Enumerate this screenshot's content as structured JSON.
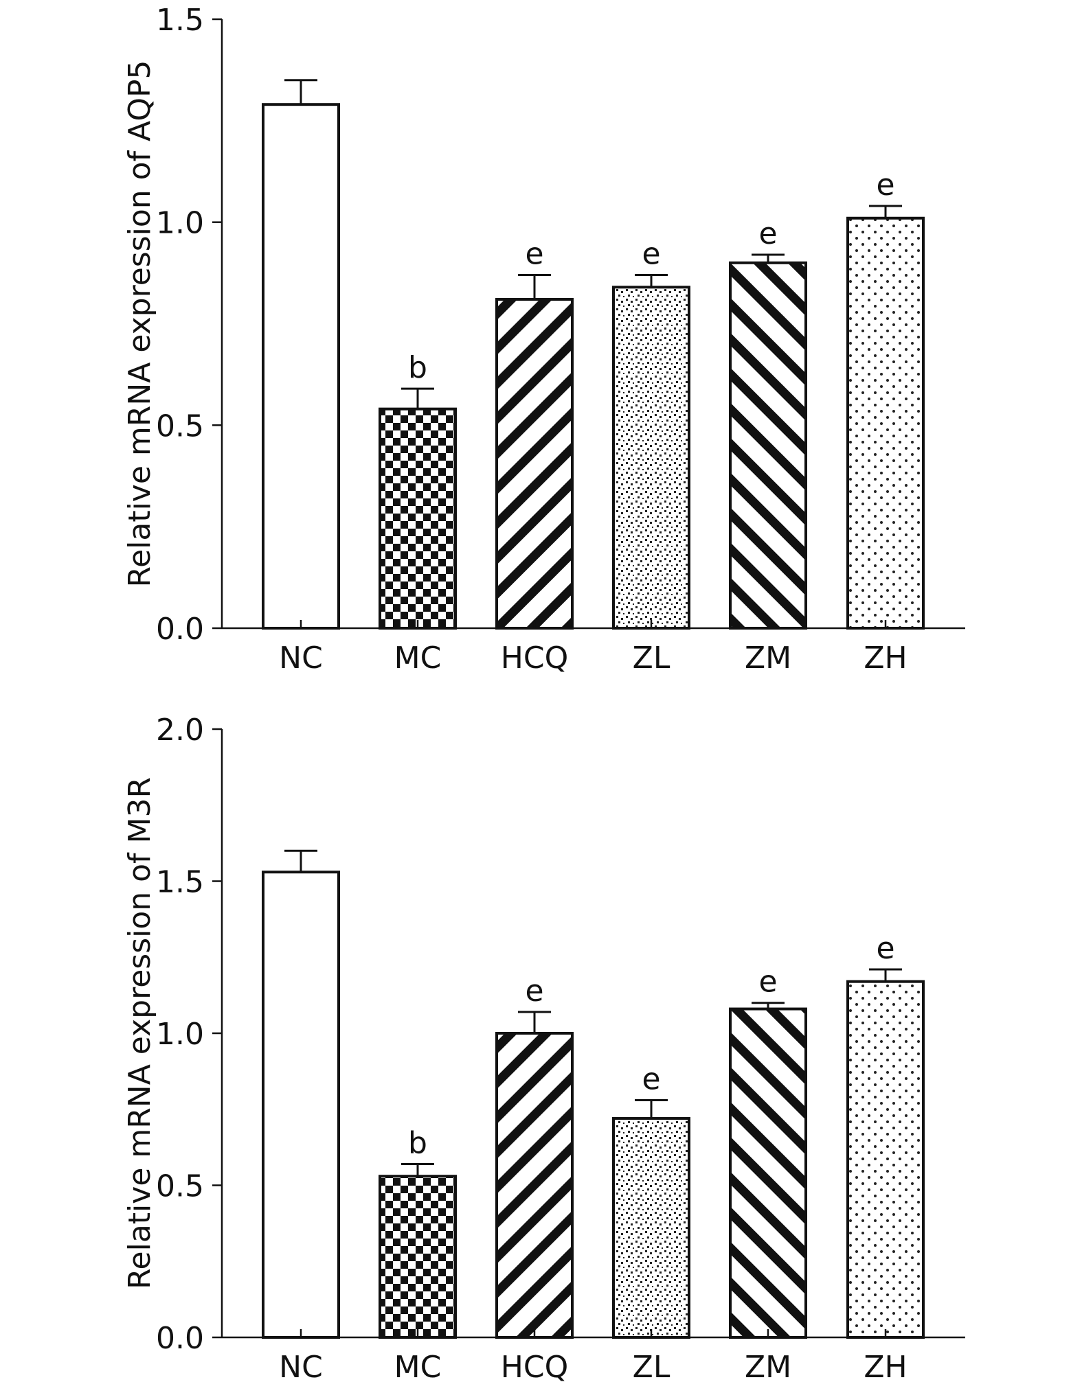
{
  "chart_data": [
    {
      "type": "bar",
      "ylabel": "Relative mRNA expression of AQP5",
      "ylim": [
        0,
        1.5
      ],
      "yticks": [
        0.0,
        0.5,
        1.0,
        1.5
      ],
      "ytick_labels": [
        "0.0",
        "0.5",
        "1.0",
        "1.5"
      ],
      "categories": [
        "NC",
        "MC",
        "HCQ",
        "ZL",
        "ZM",
        "ZH"
      ],
      "values": [
        1.29,
        0.54,
        0.81,
        0.84,
        0.9,
        1.01
      ],
      "errors": [
        0.06,
        0.05,
        0.06,
        0.03,
        0.02,
        0.03
      ],
      "annotations": [
        "",
        "b",
        "e",
        "e",
        "e",
        "e"
      ],
      "patterns": [
        "none",
        "checker",
        "diag-left",
        "speckle",
        "diag-right",
        "dots"
      ]
    },
    {
      "type": "bar",
      "ylabel": "Relative mRNA expression of M3R",
      "ylim": [
        0,
        2.0
      ],
      "yticks": [
        0.0,
        0.5,
        1.0,
        1.5,
        2.0
      ],
      "ytick_labels": [
        "0.0",
        "0.5",
        "1.0",
        "1.5",
        "2.0"
      ],
      "categories": [
        "NC",
        "MC",
        "HCQ",
        "ZL",
        "ZM",
        "ZH"
      ],
      "values": [
        1.53,
        0.53,
        1.0,
        0.72,
        1.08,
        1.17
      ],
      "errors": [
        0.07,
        0.04,
        0.07,
        0.06,
        0.02,
        0.04
      ],
      "annotations": [
        "",
        "b",
        "e",
        "e",
        "e",
        "e"
      ],
      "patterns": [
        "none",
        "checker",
        "diag-left",
        "speckle",
        "diag-right",
        "dots"
      ]
    }
  ]
}
